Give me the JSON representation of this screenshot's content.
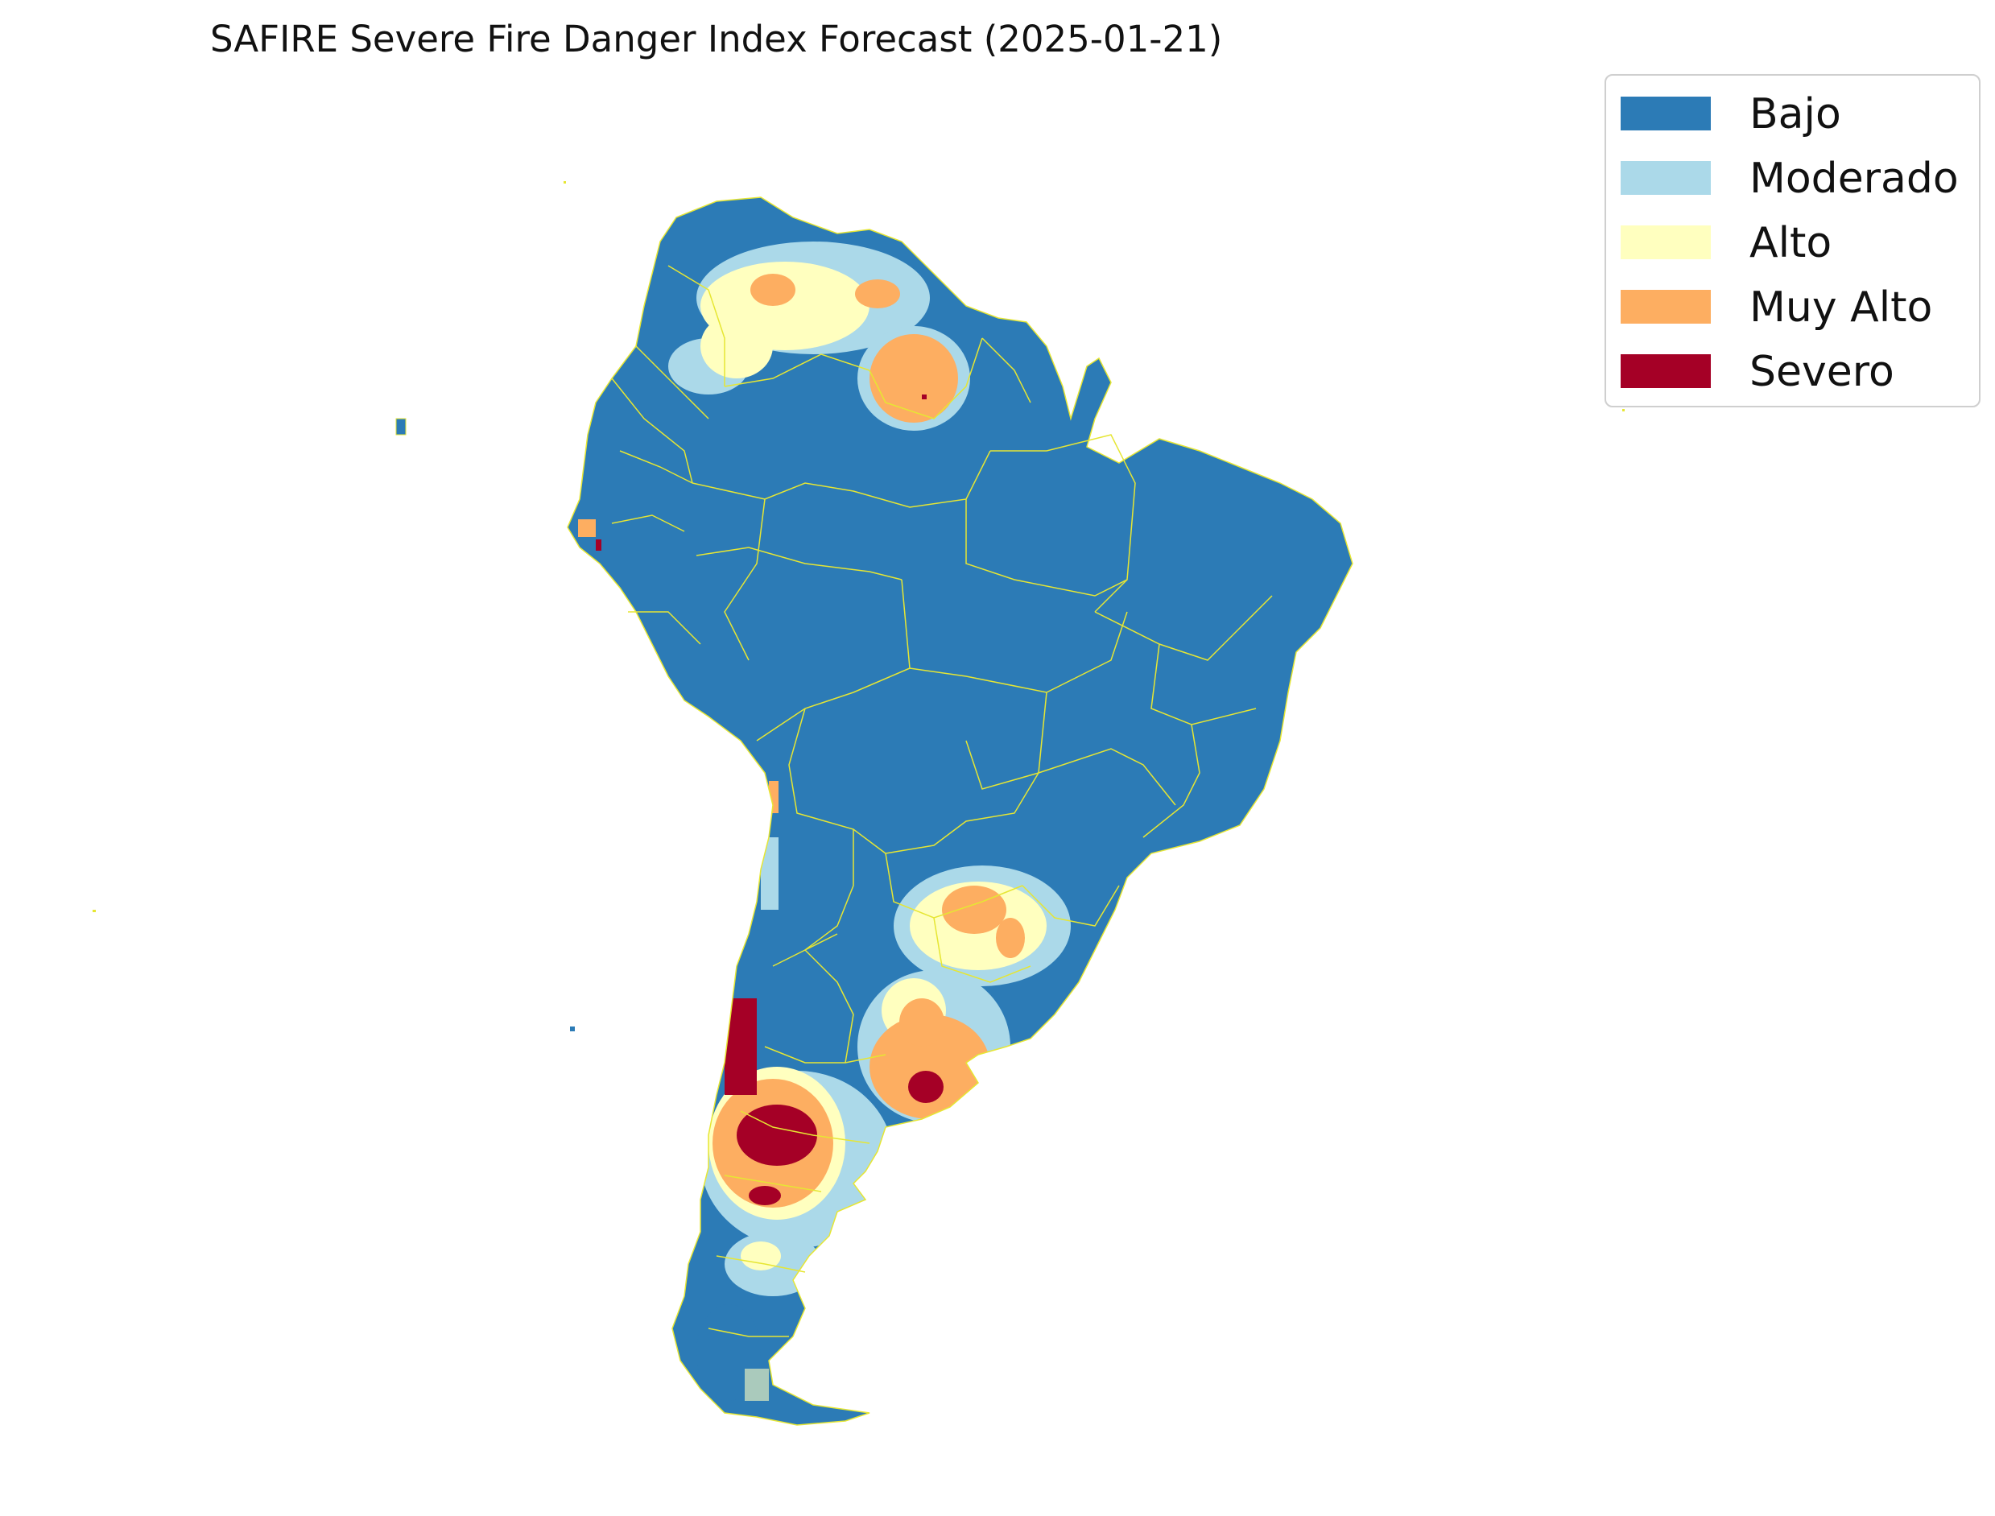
{
  "title": "SAFIRE Severe Fire Danger Index Forecast (2025-01-21)",
  "colors": {
    "bajo": "#2c7bb6",
    "moderado": "#abd9e9",
    "alto": "#ffffbf",
    "muy_alto": "#fdae61",
    "severo": "#a50026",
    "borders": "#e6e633"
  },
  "legend": [
    {
      "label": "Bajo",
      "color": "#2c7bb6"
    },
    {
      "label": "Moderado",
      "color": "#abd9e9"
    },
    {
      "label": "Alto",
      "color": "#ffffbf"
    },
    {
      "label": "Muy Alto",
      "color": "#fdae61"
    },
    {
      "label": "Severo",
      "color": "#a50026"
    }
  ]
}
